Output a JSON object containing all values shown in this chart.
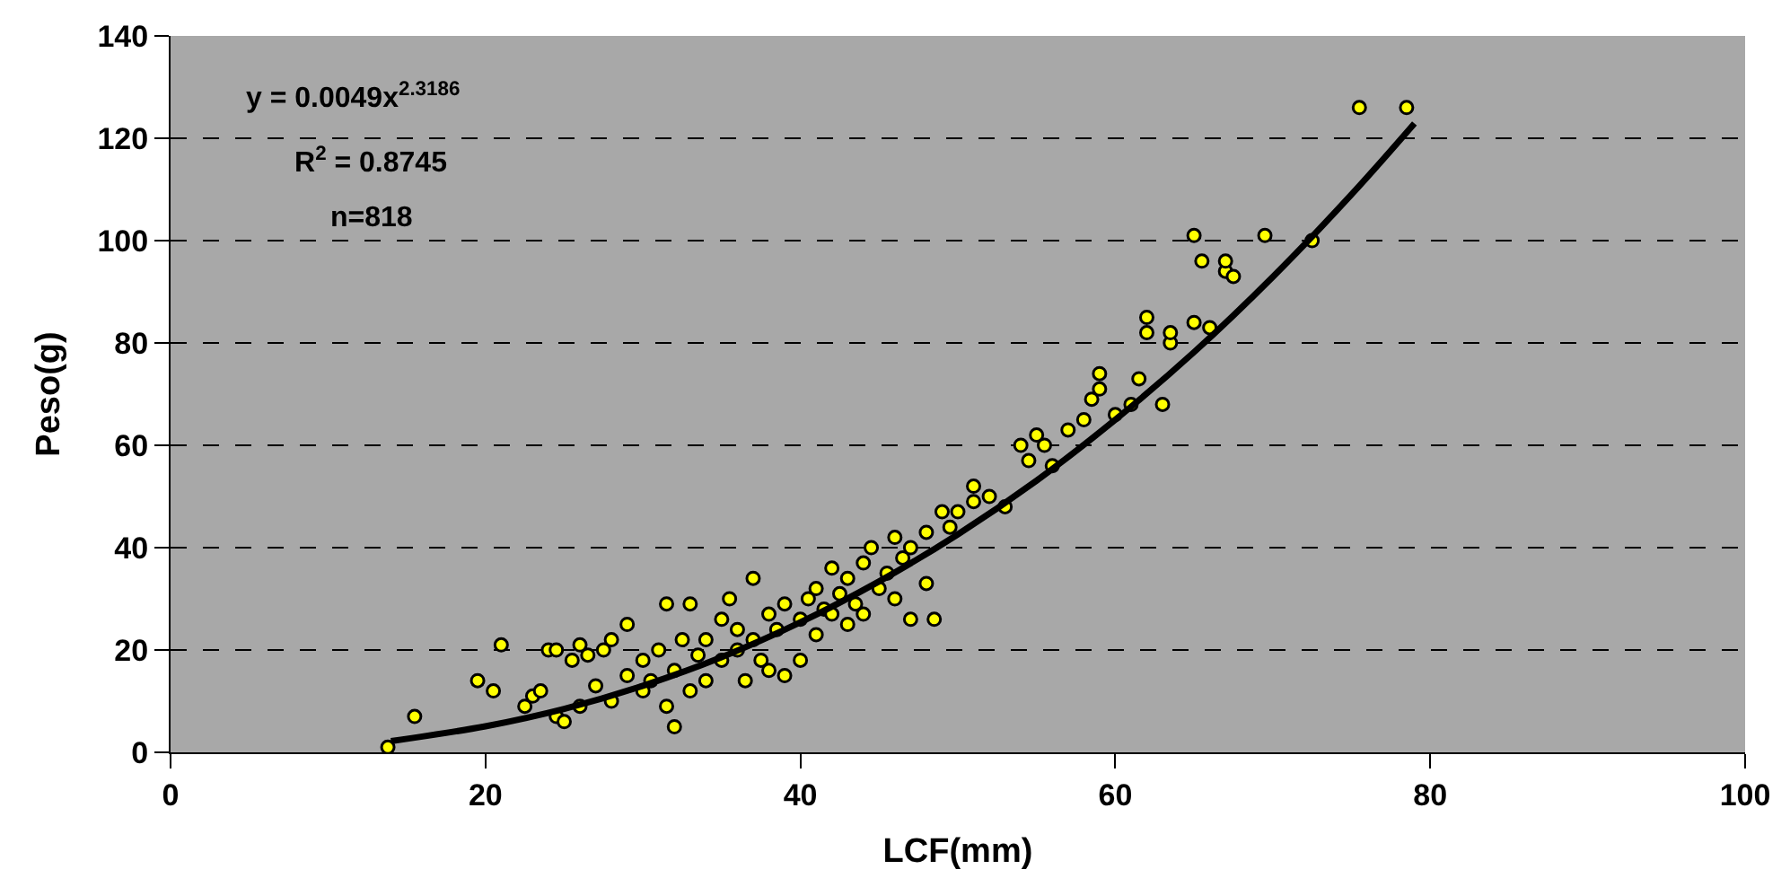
{
  "chart_data": {
    "type": "scatter",
    "xlabel": "LCF(mm)",
    "ylabel": "Peso(g)",
    "annotations": [
      "y = 0.0049x$^{2.3186}$",
      "R$^{2}$ = 0.8745",
      "n=818"
    ],
    "xlim": [
      0,
      100
    ],
    "xticks": [
      0,
      20,
      40,
      60,
      80,
      100
    ],
    "ylim": [
      0,
      140
    ],
    "yticks": [
      0,
      20,
      40,
      60,
      80,
      100,
      120,
      140
    ],
    "grid": "y",
    "legend": false,
    "marker": "circle",
    "series": [
      {
        "color": "#ffff00",
        "x": [
          13.8,
          15.5,
          19.5,
          20.5,
          21,
          22.5,
          23,
          23.5,
          24,
          24.5,
          24.5,
          25,
          25.5,
          26,
          26,
          26.5,
          27,
          27.5,
          28,
          28,
          29,
          29,
          30,
          30,
          30.5,
          31,
          31.5,
          31.5,
          32,
          32,
          32.5,
          33,
          33,
          33.5,
          34,
          34,
          35,
          35,
          35.5,
          36,
          36,
          36.5,
          37,
          37,
          37.5,
          38,
          38,
          38.5,
          39,
          39,
          40,
          40,
          40.5,
          41,
          41,
          41.5,
          42,
          42,
          42.5,
          43,
          43,
          43.5,
          44,
          44,
          44.5,
          45,
          45.5,
          46,
          46,
          46.5,
          47,
          47,
          48,
          48,
          48.5,
          49,
          49.5,
          50,
          51,
          51,
          52,
          53,
          54,
          54.5,
          55,
          55.5,
          56,
          57,
          58,
          58.5,
          59,
          59,
          60,
          61,
          62,
          62,
          61.5,
          63,
          63.5,
          63.5,
          65,
          65,
          65.5,
          66,
          67,
          67,
          67.5,
          69.5,
          72.5,
          75.5,
          78.5
        ],
        "values": [
          1,
          7,
          14,
          12,
          21,
          9,
          11,
          12,
          20,
          20,
          7,
          6,
          18,
          21,
          9,
          19,
          13,
          20,
          22,
          10,
          25,
          15,
          18,
          12,
          14,
          20,
          29,
          9,
          5,
          16,
          22,
          29,
          12,
          19,
          22,
          14,
          26,
          18,
          30,
          20,
          24,
          14,
          34,
          22,
          18,
          27,
          16,
          24,
          15,
          29,
          26,
          18,
          30,
          23,
          32,
          28,
          36,
          27,
          31,
          34,
          25,
          29,
          37,
          27,
          40,
          32,
          35,
          42,
          30,
          38,
          40,
          26,
          43,
          33,
          26,
          47,
          44,
          47,
          52,
          49,
          50,
          48,
          60,
          57,
          62,
          60,
          56,
          63,
          65,
          69,
          74,
          71,
          66,
          68,
          85,
          82,
          73,
          68,
          80,
          82,
          101,
          84,
          96,
          83,
          94,
          96,
          93,
          101,
          100,
          126,
          126
        ]
      },
      {
        "type": "line",
        "color": "#000000",
        "marker": "none",
        "line_style": "solid",
        "x": [
          14,
          20,
          25,
          30,
          35,
          40,
          45,
          50,
          55,
          60,
          65,
          70,
          75,
          79
        ],
        "values": [
          2.2,
          5.1,
          8.5,
          13.0,
          18.6,
          25.4,
          33.4,
          42.6,
          53.1,
          65.0,
          78.2,
          92.9,
          109.0,
          122.9
        ]
      }
    ]
  }
}
